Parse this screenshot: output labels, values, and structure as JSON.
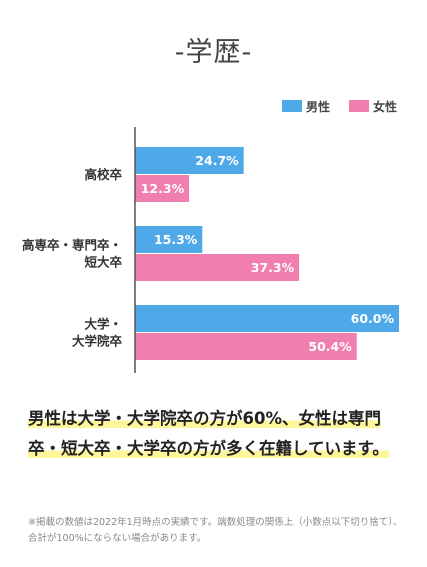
{
  "page": {
    "title": "-学歴-",
    "summary": "男性は大学・大学院卒の方が60%、女性は専門卒・短大卒・大学卒の方が多く在籍しています。",
    "note": "※掲載の数値は2022年1月時点の実績です。端数処理の関係上（小数点以下切り捨て）、合計が100%にならない場合があります。"
  },
  "chart_data": {
    "type": "bar",
    "orientation": "horizontal",
    "title": "-学歴-",
    "categories": [
      [
        "高校卒"
      ],
      [
        "高専卒・専門卒・",
        "短大卒"
      ],
      [
        "大学・",
        "大学院卒"
      ]
    ],
    "series": [
      {
        "name": "男性",
        "values": [
          24.7,
          15.3,
          60.0
        ],
        "labels": [
          "24.7%",
          "15.3%",
          "60.0%"
        ],
        "color": "#4fa8e8"
      },
      {
        "name": "女性",
        "values": [
          12.3,
          37.3,
          50.4
        ],
        "labels": [
          "12.3%",
          "37.3%",
          "50.4%"
        ],
        "color": "#f07fb0"
      }
    ],
    "xlim": [
      0,
      60
    ],
    "legend": "top-right",
    "grid": false
  }
}
